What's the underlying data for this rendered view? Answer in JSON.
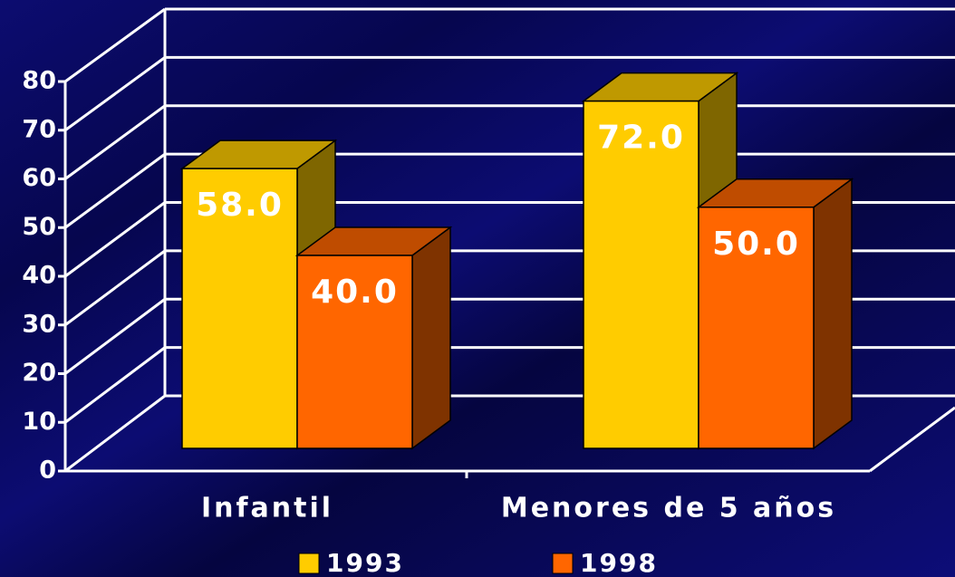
{
  "chart_data": {
    "type": "bar3d",
    "categories": [
      "Infantil",
      "Menores de 5 años"
    ],
    "series": [
      {
        "name": "1993",
        "color": "#ffcc00",
        "values": [
          58,
          72
        ],
        "value_labels": [
          "58.0",
          "72.0"
        ]
      },
      {
        "name": "1998",
        "color": "#ff6600",
        "values": [
          40,
          50
        ],
        "value_labels": [
          "40.0",
          "50.0"
        ]
      }
    ],
    "ylim": [
      0,
      80
    ],
    "yticks": [
      0,
      10,
      20,
      30,
      40,
      50,
      60,
      70,
      80
    ],
    "grid": true,
    "legend": "bottom"
  }
}
